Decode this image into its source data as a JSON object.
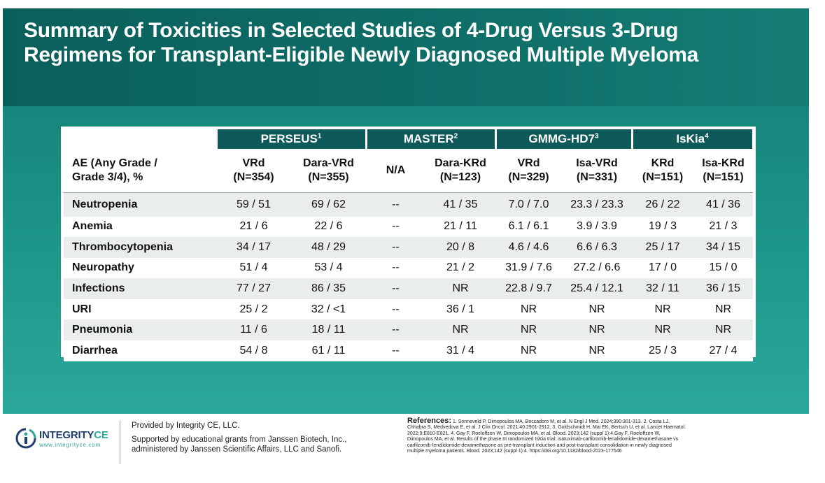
{
  "title": "Summary of Toxicities in Selected Studies of 4-Drug Versus 3-Drug Regimens for Transplant-Eligible Newly Diagnosed Multiple Myeloma",
  "table": {
    "groups": [
      {
        "name": "PERSEUS",
        "sup": "1"
      },
      {
        "name": "MASTER",
        "sup": "2"
      },
      {
        "name": "GMMG-HD7",
        "sup": "3"
      },
      {
        "name": "IsKia",
        "sup": "4"
      }
    ],
    "first_col_header": [
      "AE (Any Grade /",
      "Grade 3/4), %"
    ],
    "columns": [
      {
        "arm": "VRd",
        "n": "(N=354)"
      },
      {
        "arm": "Dara-VRd",
        "n": "(N=355)"
      },
      {
        "arm": "N/A",
        "n": ""
      },
      {
        "arm": "Dara-KRd",
        "n": "(N=123)"
      },
      {
        "arm": "VRd",
        "n": "(N=329)"
      },
      {
        "arm": "Isa-VRd",
        "n": "(N=331)"
      },
      {
        "arm": "KRd",
        "n": "(N=151)"
      },
      {
        "arm": "Isa-KRd",
        "n": "(N=151)"
      }
    ],
    "rows": [
      {
        "label": "Neutropenia",
        "values": [
          "59 / 51",
          "69 / 62",
          "--",
          "41 / 35",
          "7.0 / 7.0",
          "23.3 / 23.3",
          "26 / 22",
          "41 / 36"
        ]
      },
      {
        "label": "Anemia",
        "values": [
          "21 / 6",
          "22 / 6",
          "--",
          "21 / 11",
          "6.1 / 6.1",
          "3.9 / 3.9",
          "19 / 3",
          "21 / 3"
        ]
      },
      {
        "label": "Thrombocytopenia",
        "values": [
          "34 / 17",
          "48 / 29",
          "--",
          "20 / 8",
          "4.6 / 4.6",
          "6.6 / 6.3",
          "25 / 17",
          "34 / 15"
        ]
      },
      {
        "label": "Neuropathy",
        "values": [
          "51 / 4",
          "53 / 4",
          "--",
          "21 / 2",
          "31.9 / 7.6",
          "27.2 / 6.6",
          "17 / 0",
          "15 / 0"
        ]
      },
      {
        "label": "Infections",
        "values": [
          "77 / 27",
          "86 / 35",
          "--",
          "NR",
          "22.8 / 9.7",
          "25.4 / 12.1",
          "32 / 11",
          "36 / 15"
        ]
      },
      {
        "label": "URI",
        "values": [
          "25 / 2",
          "32 / <1",
          "--",
          "36 / 1",
          "NR",
          "NR",
          "NR",
          "NR"
        ]
      },
      {
        "label": "Pneumonia",
        "values": [
          "11 / 6",
          "18 / 11",
          "--",
          "NR",
          "NR",
          "NR",
          "NR",
          "NR"
        ]
      },
      {
        "label": "Diarrhea",
        "values": [
          "54 / 8",
          "61 / 11",
          "--",
          "31 / 4",
          "NR",
          "NR",
          "25 / 3",
          "27 / 4"
        ]
      }
    ]
  },
  "footer": {
    "logo_name_a": "INTEGRITY",
    "logo_name_b": "CE",
    "logo_url": "www.integrityce.com",
    "provided_by": "Provided by Integrity CE, LLC.",
    "supported_by": "Supported by educational grants from Janssen Biotech, Inc., administered by Janssen Scientific Affairs, LLC and Sanofi.",
    "references_label": "References:",
    "references_text": "1. Sonneveld P, Dimopoulos MA, Boccadoro M, et al. N Engl J Med. 2024;390:301-313. 2. Costa LJ, Chhabra S, Medvedova E, et al. J Clin Oncol. 2021;40:2901-2912. 3. Goldschmidt H, Mai EK, Bertsch U, et al. Lancet Haematol. 2022;9:E810-E821. 4. Gay F, Roeloffzen W, Dimopoulos MA, et al. Blood. 2023;142 (suppl 1):4.Gay F, Roeloffzen W, Dimopoulos MA, et al. Results of the phase III randomized IsKia trial: isatuximab-carfilzomib-lenalidomide-dexamethasone vs carfilzomib-lenalidomide-dexamethasone as pre-transplant induction and post-transplant consolidation in newly diagnosed multiple myeloma patients. Blood. 2023;142 (suppl 1):4. https://doi.org/10.1182/blood-2023-177546"
  },
  "colors": {
    "slide_bg": "#1a8f84",
    "title_band": "#0b5f5b",
    "group_header": "#0e5a5a",
    "row_stripe": "#e9eeec",
    "logo_navy": "#1c3f6e",
    "logo_teal": "#2ea79a"
  }
}
